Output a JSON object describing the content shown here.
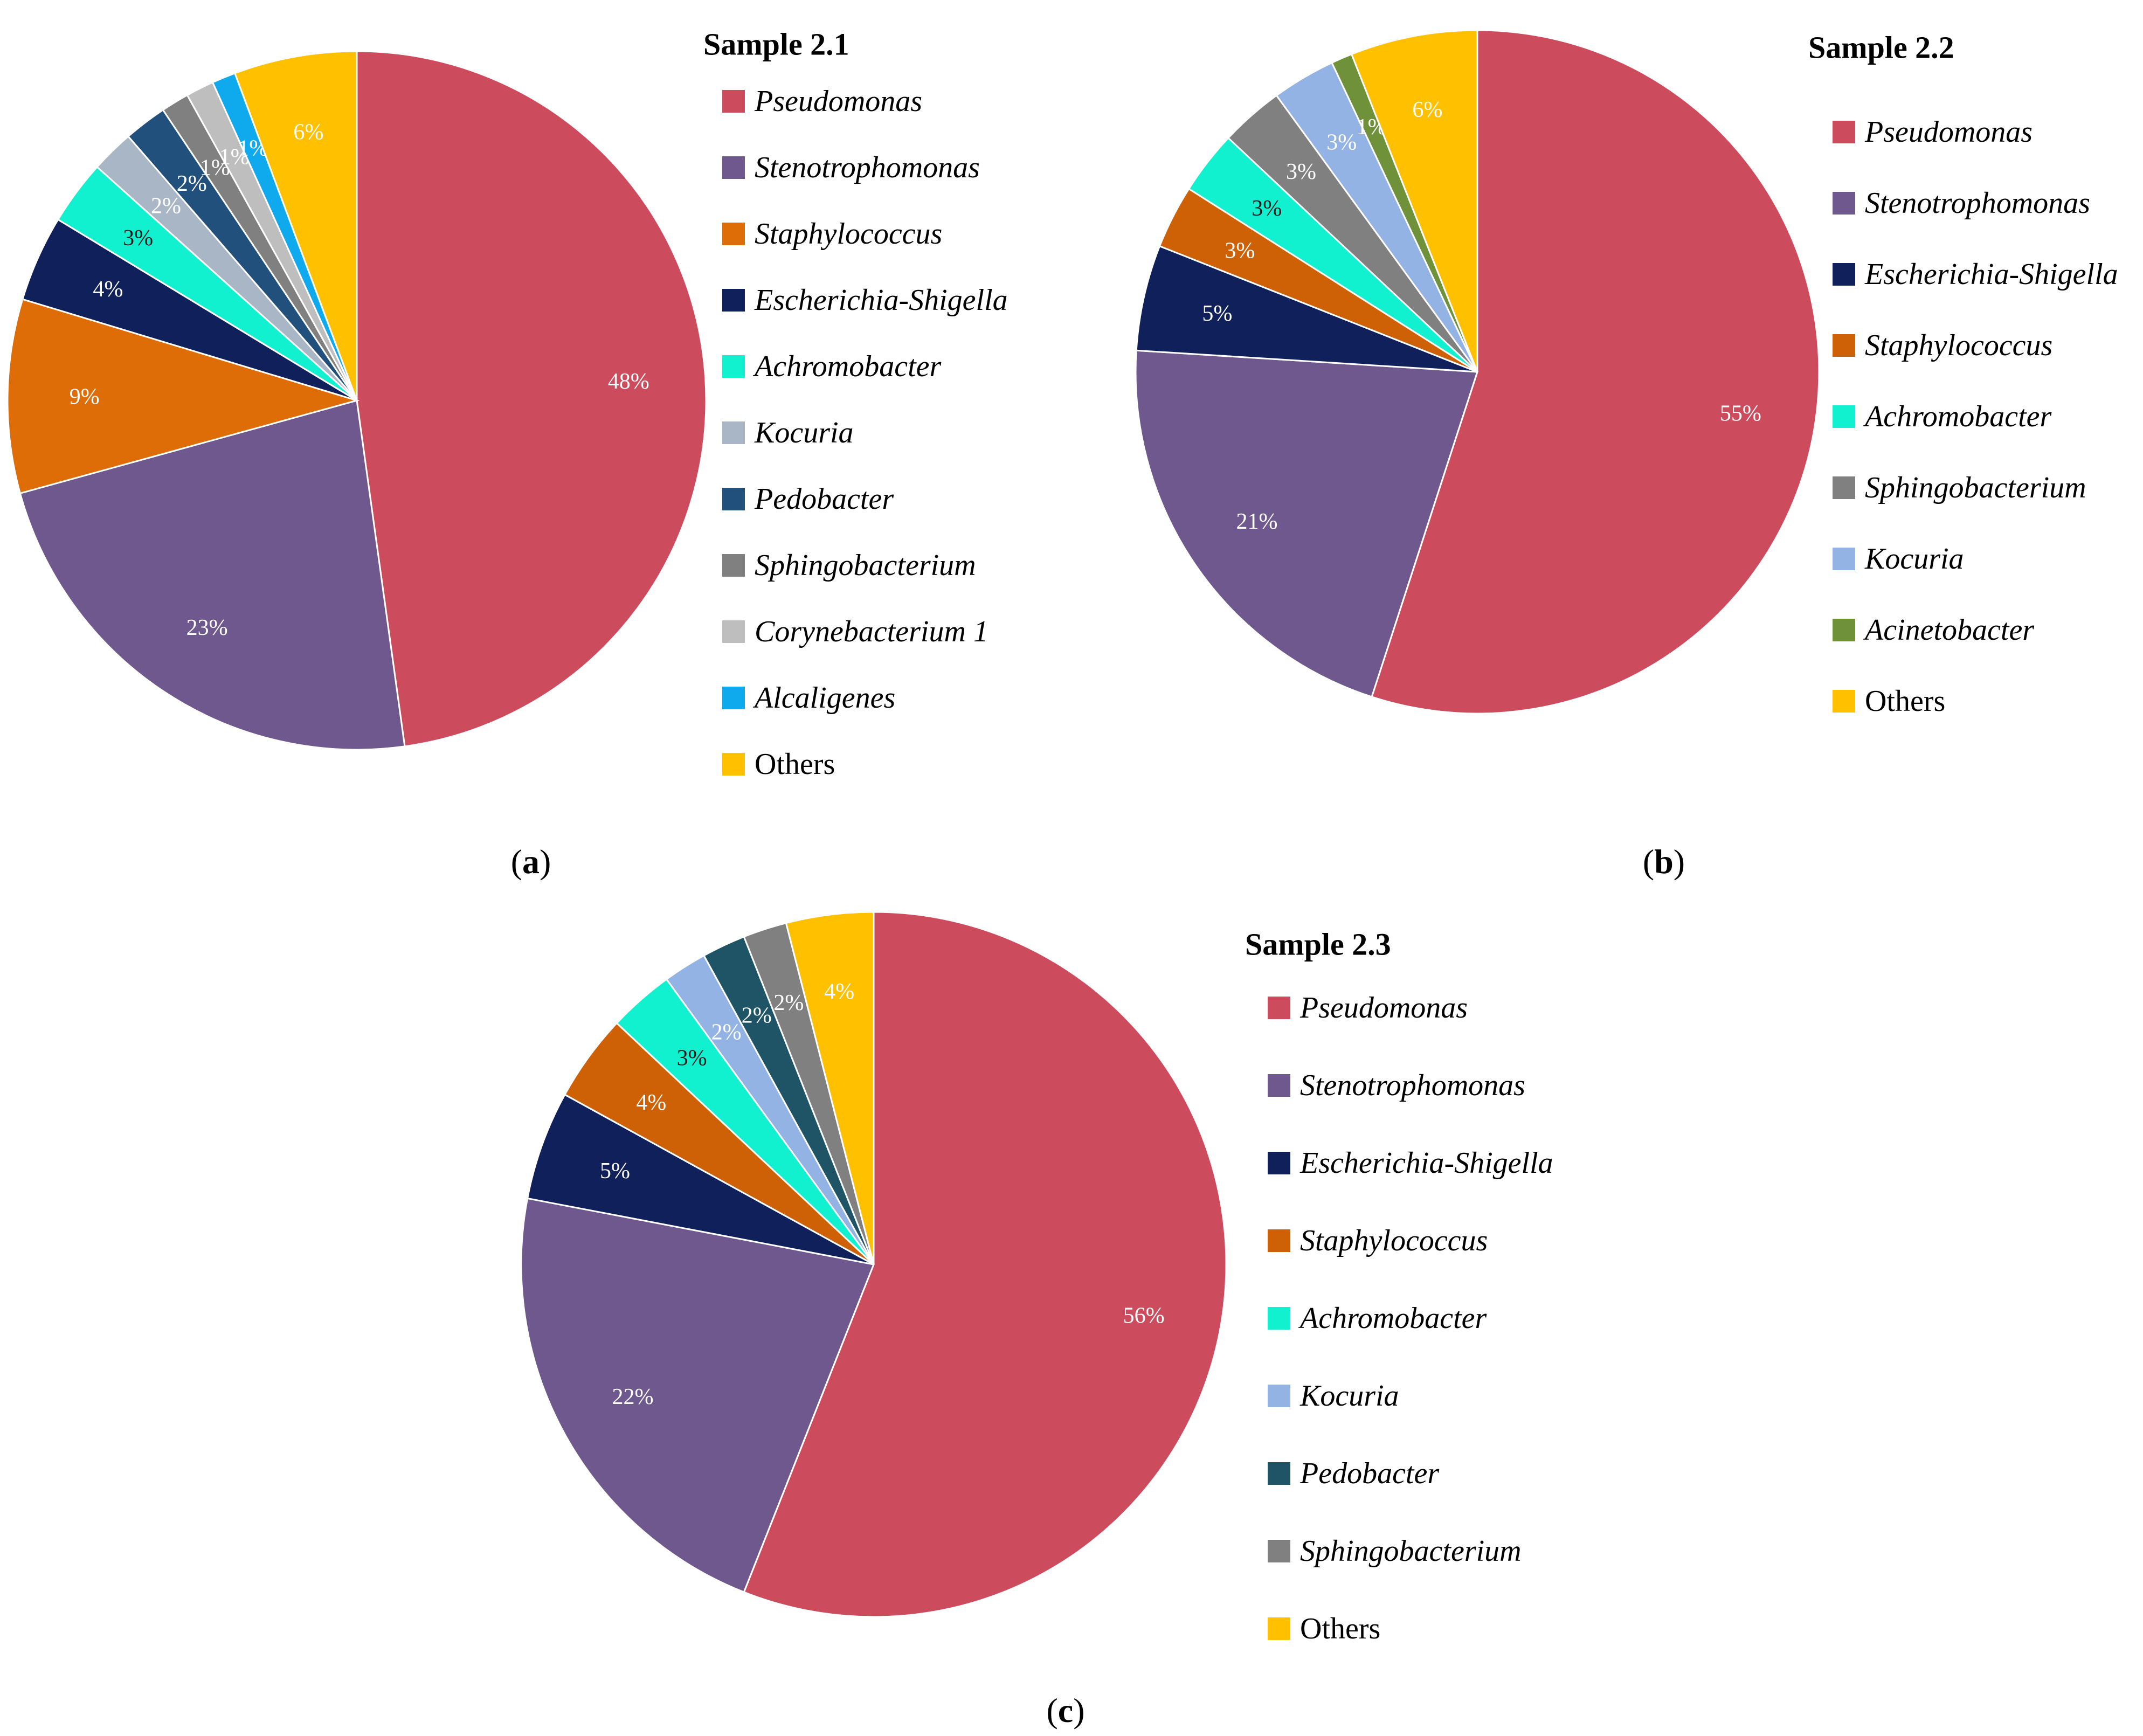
{
  "chart_data": [
    {
      "id": "a",
      "type": "pie",
      "title": "Sample 2.1",
      "caption_letter": "a",
      "start": "12 o'clock",
      "direction": "clockwise",
      "slices": [
        {
          "label": "Pseudomonas",
          "value": 48,
          "display": "48%",
          "color": "#CC4C5E",
          "text_color": "#ffffff",
          "italic": true
        },
        {
          "label": "Stenotrophomonas",
          "value": 23,
          "display": "23%",
          "color": "#6F588E",
          "text_color": "#ffffff",
          "italic": true
        },
        {
          "label": "Staphylococcus",
          "value": 9,
          "display": "9%",
          "color": "#DE6C07",
          "text_color": "#ffffff",
          "italic": true
        },
        {
          "label": "Escherichia-Shigella",
          "value": 4,
          "display": "4%",
          "color": "#0F205A",
          "text_color": "#ffffff",
          "italic": true
        },
        {
          "label": "Achromobacter",
          "value": 3,
          "display": "3%",
          "color": "#11F0CF",
          "text_color": "#1a1a1a",
          "italic": true
        },
        {
          "label": "Kocuria",
          "value": 2,
          "display": "2%",
          "color": "#A9B6C6",
          "text_color": "#ffffff",
          "italic": true
        },
        {
          "label": "Pedobacter",
          "value": 2,
          "display": "2%",
          "color": "#22507C",
          "text_color": "#ffffff",
          "italic": true
        },
        {
          "label": "Sphingobacterium",
          "value": 1.3,
          "display": "1%",
          "color": "#808080",
          "text_color": "#ffffff",
          "italic": true
        },
        {
          "label": "Corynebacterium 1",
          "value": 1.3,
          "display": "1%",
          "color": "#BEBEBE",
          "text_color": "#ffffff",
          "italic": true
        },
        {
          "label": "Alcaligenes",
          "value": 1.1,
          "display": "1%",
          "color": "#0FA9EE",
          "text_color": "#ffffff",
          "italic": true
        },
        {
          "label": "Others",
          "value": 5.7,
          "display": "6%",
          "color": "#FFC000",
          "text_color": "#ffffff",
          "italic": false
        }
      ]
    },
    {
      "id": "b",
      "type": "pie",
      "title": "Sample 2.2",
      "caption_letter": "b",
      "start": "12 o'clock",
      "direction": "clockwise",
      "slices": [
        {
          "label": "Pseudomonas",
          "value": 55,
          "display": "55%",
          "color": "#CC4C5E",
          "text_color": "#ffffff",
          "italic": true
        },
        {
          "label": "Stenotrophomonas",
          "value": 21,
          "display": "21%",
          "color": "#6F588E",
          "text_color": "#ffffff",
          "italic": true
        },
        {
          "label": "Escherichia-Shigella",
          "value": 5,
          "display": "5%",
          "color": "#0F205A",
          "text_color": "#ffffff",
          "italic": true
        },
        {
          "label": "Staphylococcus",
          "value": 3,
          "display": "3%",
          "color": "#CE6106",
          "text_color": "#ffffff",
          "italic": true
        },
        {
          "label": "Achromobacter",
          "value": 3,
          "display": "3%",
          "color": "#11F0CF",
          "text_color": "#1a1a1a",
          "italic": true
        },
        {
          "label": "Sphingobacterium",
          "value": 3,
          "display": "3%",
          "color": "#808080",
          "text_color": "#ffffff",
          "italic": true
        },
        {
          "label": "Kocuria",
          "value": 3,
          "display": "3%",
          "color": "#92B3E4",
          "text_color": "#ffffff",
          "italic": true
        },
        {
          "label": "Acinetobacter",
          "value": 1,
          "display": "1%",
          "color": "#6E913A",
          "text_color": "#ffffff",
          "italic": true
        },
        {
          "label": "Others",
          "value": 6,
          "display": "6%",
          "color": "#FFC000",
          "text_color": "#ffffff",
          "italic": false
        }
      ]
    },
    {
      "id": "c",
      "type": "pie",
      "title": "Sample 2.3",
      "caption_letter": "c",
      "start": "12 o'clock",
      "direction": "clockwise",
      "slices": [
        {
          "label": "Pseudomonas",
          "value": 56,
          "display": "56%",
          "color": "#CC4C5E",
          "text_color": "#ffffff",
          "italic": true
        },
        {
          "label": "Stenotrophomonas",
          "value": 22,
          "display": "22%",
          "color": "#6F588E",
          "text_color": "#ffffff",
          "italic": true
        },
        {
          "label": "Escherichia-Shigella",
          "value": 5,
          "display": "5%",
          "color": "#0F205A",
          "text_color": "#ffffff",
          "italic": true
        },
        {
          "label": "Staphylococcus",
          "value": 4,
          "display": "4%",
          "color": "#CE6106",
          "text_color": "#ffffff",
          "italic": true
        },
        {
          "label": "Achromobacter",
          "value": 3,
          "display": "3%",
          "color": "#11F0CF",
          "text_color": "#1a1a1a",
          "italic": true
        },
        {
          "label": "Kocuria",
          "value": 2,
          "display": "2%",
          "color": "#92B3E4",
          "text_color": "#ffffff",
          "italic": true
        },
        {
          "label": "Pedobacter",
          "value": 2,
          "display": "2%",
          "color": "#1F5366",
          "text_color": "#ffffff",
          "italic": true
        },
        {
          "label": "Sphingobacterium",
          "value": 2,
          "display": "2%",
          "color": "#808080",
          "text_color": "#ffffff",
          "italic": true
        },
        {
          "label": "Others",
          "value": 4,
          "display": "4%",
          "color": "#FFC000",
          "text_color": "#ffffff",
          "italic": false
        }
      ]
    }
  ]
}
